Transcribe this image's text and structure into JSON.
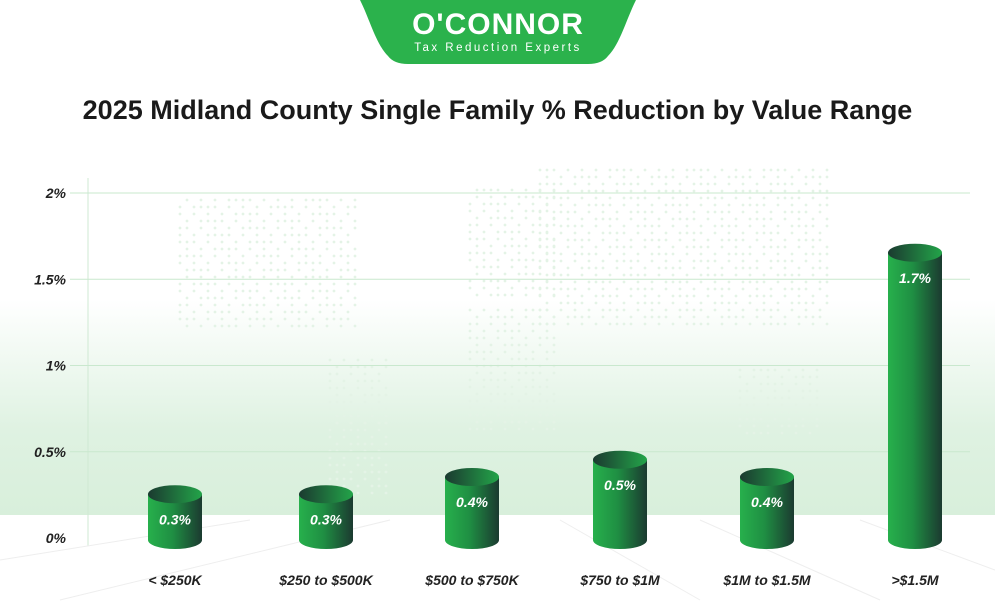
{
  "logo": {
    "name": "O'CONNOR",
    "tagline": "Tax Reduction Experts",
    "color": "#2bb24c"
  },
  "chart_data": {
    "type": "bar",
    "title": "2025 Midland County Single Family % Reduction by Value Range",
    "categories": [
      "< $250K",
      "$250 to $500K",
      "$500 to $750K",
      "$750 to $1M",
      "$1M to $1.5M",
      ">$1.5M"
    ],
    "values": [
      0.3,
      0.3,
      0.4,
      0.5,
      0.4,
      1.7
    ],
    "data_labels": [
      "0.3%",
      "0.3%",
      "0.4%",
      "0.5%",
      "0.4%",
      "1.7%"
    ],
    "yticks": [
      0,
      0.5,
      1,
      1.5,
      2
    ],
    "ytick_labels": [
      "0%",
      "0.5%",
      "1%",
      "1.5%",
      "2%"
    ],
    "ylim": [
      0,
      2
    ],
    "xlabel": "",
    "ylabel": "",
    "grid": true,
    "bar_color": "#22a447",
    "bar_dark": "#1b3a30"
  }
}
